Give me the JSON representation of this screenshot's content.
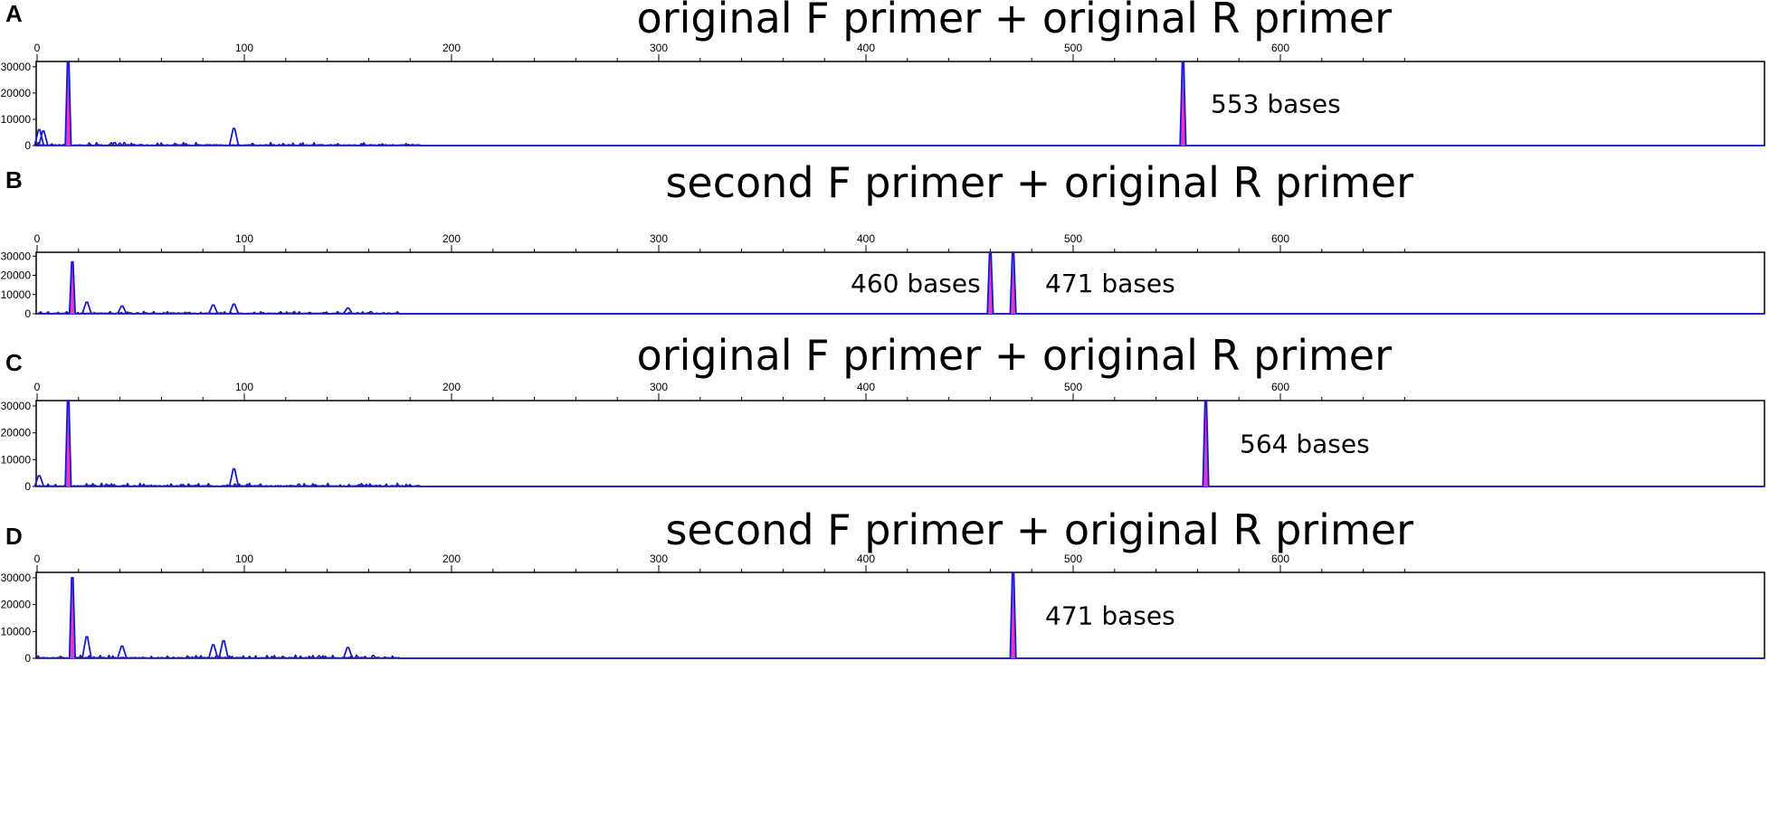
{
  "colors": {
    "trace": "#1a1acc",
    "peak_fill": "#e03cc8",
    "frame": "#000000",
    "background": "#ffffff"
  },
  "chart_data": [
    {
      "type": "line",
      "panel": "A",
      "title": "original F primer + original R primer",
      "xlim": [
        0,
        660
      ],
      "ylim": [
        0,
        32000
      ],
      "x_ticks": [
        0,
        100,
        200,
        300,
        400,
        500,
        600
      ],
      "y_ticks": [
        0,
        10000,
        20000,
        30000
      ],
      "peaks": [
        {
          "x": 1,
          "y": 6000
        },
        {
          "x": 3,
          "y": 5500
        },
        {
          "x": 15,
          "y": 32000
        },
        {
          "x": 95,
          "y": 6500
        },
        {
          "x": 553,
          "y": 32000
        }
      ],
      "annotations": [
        {
          "text": "553 bases",
          "x": 553
        }
      ],
      "noise_end": 185
    },
    {
      "type": "line",
      "panel": "B",
      "title": "second F primer + original R primer",
      "xlim": [
        0,
        660
      ],
      "ylim": [
        0,
        32000
      ],
      "x_ticks": [
        0,
        100,
        200,
        300,
        400,
        500,
        600
      ],
      "y_ticks": [
        0,
        10000,
        20000,
        30000
      ],
      "peaks": [
        {
          "x": 17,
          "y": 27000
        },
        {
          "x": 24,
          "y": 6000
        },
        {
          "x": 41,
          "y": 4000
        },
        {
          "x": 85,
          "y": 4500
        },
        {
          "x": 95,
          "y": 5000
        },
        {
          "x": 150,
          "y": 3000
        },
        {
          "x": 460,
          "y": 32000
        },
        {
          "x": 471,
          "y": 32000
        }
      ],
      "annotations": [
        {
          "text": "460 bases",
          "x": 460
        },
        {
          "text": "471 bases",
          "x": 471
        }
      ],
      "noise_end": 175
    },
    {
      "type": "line",
      "panel": "C",
      "title": "original F primer + original R primer",
      "xlim": [
        0,
        660
      ],
      "ylim": [
        0,
        32000
      ],
      "x_ticks": [
        0,
        100,
        200,
        300,
        400,
        500,
        600
      ],
      "y_ticks": [
        0,
        10000,
        20000,
        30000
      ],
      "peaks": [
        {
          "x": 1,
          "y": 4000
        },
        {
          "x": 15,
          "y": 32000
        },
        {
          "x": 95,
          "y": 6500
        },
        {
          "x": 564,
          "y": 32000
        }
      ],
      "annotations": [
        {
          "text": "564 bases",
          "x": 564
        }
      ],
      "noise_end": 185
    },
    {
      "type": "line",
      "panel": "D",
      "title": "second F primer + original R primer",
      "xlim": [
        0,
        660
      ],
      "ylim": [
        0,
        32000
      ],
      "x_ticks": [
        0,
        100,
        200,
        300,
        400,
        500,
        600
      ],
      "y_ticks": [
        0,
        10000,
        20000,
        30000
      ],
      "peaks": [
        {
          "x": 17,
          "y": 30000
        },
        {
          "x": 24,
          "y": 8000
        },
        {
          "x": 41,
          "y": 4500
        },
        {
          "x": 85,
          "y": 5000
        },
        {
          "x": 90,
          "y": 6500
        },
        {
          "x": 150,
          "y": 4000
        },
        {
          "x": 471,
          "y": 32000
        }
      ],
      "annotations": [
        {
          "text": "471 bases",
          "x": 471
        }
      ],
      "noise_end": 175
    }
  ]
}
